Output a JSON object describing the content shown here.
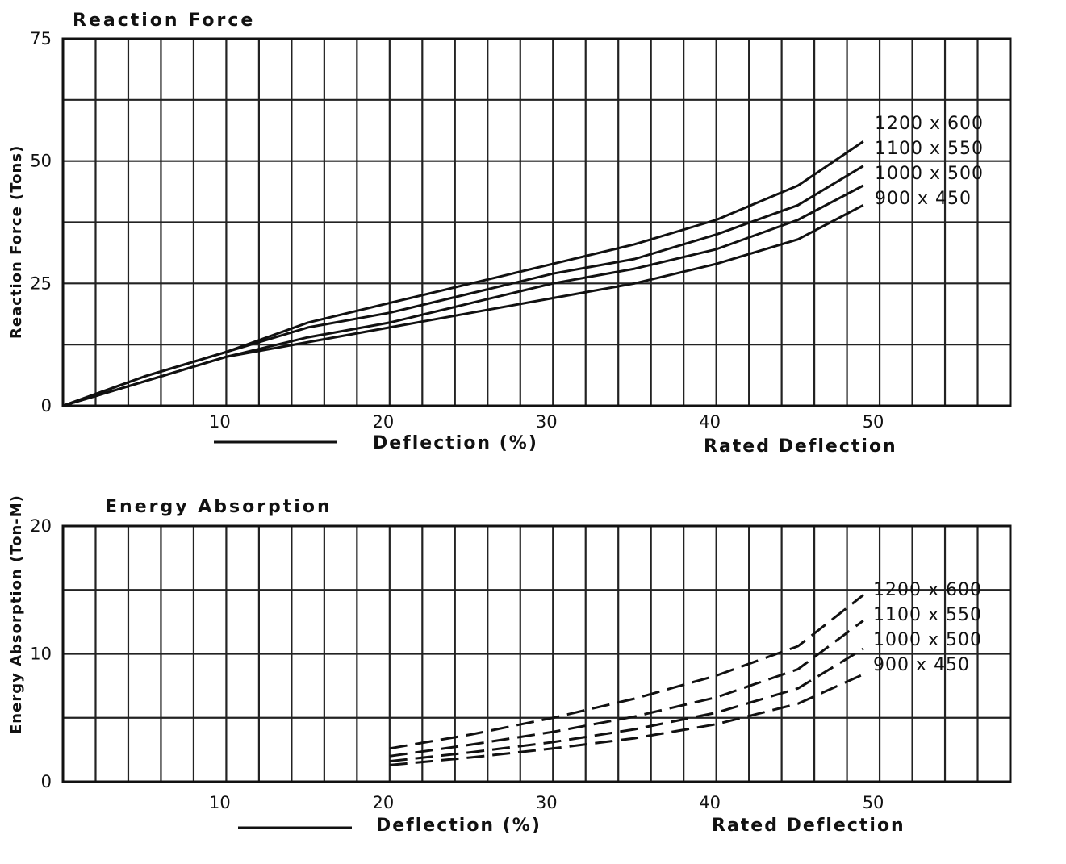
{
  "chart_data": [
    {
      "type": "line",
      "title": "Reaction Force",
      "ylabel": "Reaction Force (Tons)",
      "xlabel": "Deflection (%)",
      "x_note": "Rated Deflection",
      "xlim": [
        0,
        58
      ],
      "ylim": [
        0,
        75
      ],
      "x_ticks": [
        "10",
        "20",
        "30",
        "40",
        "50"
      ],
      "y_ticks": [
        "0",
        "25",
        "50",
        "75"
      ],
      "grid": true,
      "legend_position": "right, at line ends",
      "series": [
        {
          "name": "1200 x 600",
          "dash": "solid",
          "points": [
            [
              0,
              0
            ],
            [
              5,
              6
            ],
            [
              10,
              11
            ],
            [
              15,
              17
            ],
            [
              20,
              21
            ],
            [
              25,
              25
            ],
            [
              30,
              29
            ],
            [
              35,
              33
            ],
            [
              40,
              38
            ],
            [
              45,
              45
            ],
            [
              49,
              54
            ]
          ]
        },
        {
          "name": "1100 x 550",
          "dash": "solid",
          "points": [
            [
              0,
              0
            ],
            [
              5,
              6
            ],
            [
              10,
              11
            ],
            [
              15,
              16
            ],
            [
              20,
              19
            ],
            [
              25,
              23
            ],
            [
              30,
              27
            ],
            [
              35,
              30
            ],
            [
              40,
              35
            ],
            [
              45,
              41
            ],
            [
              49,
              49
            ]
          ]
        },
        {
          "name": "1000 x 500",
          "dash": "solid",
          "points": [
            [
              0,
              0
            ],
            [
              5,
              5
            ],
            [
              10,
              10
            ],
            [
              15,
              14
            ],
            [
              20,
              17
            ],
            [
              25,
              21
            ],
            [
              30,
              25
            ],
            [
              35,
              28
            ],
            [
              40,
              32
            ],
            [
              45,
              38
            ],
            [
              49,
              45
            ]
          ]
        },
        {
          "name": "900 x 450",
          "dash": "solid",
          "points": [
            [
              0,
              0
            ],
            [
              5,
              5
            ],
            [
              10,
              10
            ],
            [
              15,
              13
            ],
            [
              20,
              16
            ],
            [
              25,
              19
            ],
            [
              30,
              22
            ],
            [
              35,
              25
            ],
            [
              40,
              29
            ],
            [
              45,
              34
            ],
            [
              49,
              41
            ]
          ]
        }
      ]
    },
    {
      "type": "line",
      "title": "Energy Absorption",
      "ylabel": "Energy Absorption (Ton-M)",
      "xlabel": "Deflection (%)",
      "x_note": "Rated Deflection",
      "xlim": [
        0,
        58
      ],
      "ylim": [
        0,
        20
      ],
      "x_ticks": [
        "10",
        "20",
        "30",
        "40",
        "50"
      ],
      "y_ticks": [
        "0",
        "10",
        "20"
      ],
      "grid": true,
      "legend_position": "right, at line ends",
      "series": [
        {
          "name": "1200 x 600",
          "dash": "dashed",
          "points": [
            [
              20,
              2.6
            ],
            [
              25,
              3.7
            ],
            [
              30,
              5.0
            ],
            [
              35,
              6.5
            ],
            [
              40,
              8.3
            ],
            [
              45,
              10.6
            ],
            [
              49,
              14.6
            ]
          ]
        },
        {
          "name": "1100 x 550",
          "dash": "dashed",
          "points": [
            [
              20,
              2.0
            ],
            [
              25,
              2.9
            ],
            [
              30,
              3.9
            ],
            [
              35,
              5.1
            ],
            [
              40,
              6.6
            ],
            [
              45,
              8.8
            ],
            [
              49,
              12.6
            ]
          ]
        },
        {
          "name": "1000 x 500",
          "dash": "dashed",
          "points": [
            [
              20,
              1.6
            ],
            [
              25,
              2.3
            ],
            [
              30,
              3.1
            ],
            [
              35,
              4.1
            ],
            [
              40,
              5.4
            ],
            [
              45,
              7.3
            ],
            [
              49,
              10.4
            ]
          ]
        },
        {
          "name": "900 x 450",
          "dash": "dashed",
          "points": [
            [
              20,
              1.3
            ],
            [
              25,
              1.9
            ],
            [
              30,
              2.6
            ],
            [
              35,
              3.4
            ],
            [
              40,
              4.5
            ],
            [
              45,
              6.1
            ],
            [
              49,
              8.4
            ]
          ]
        }
      ]
    }
  ]
}
